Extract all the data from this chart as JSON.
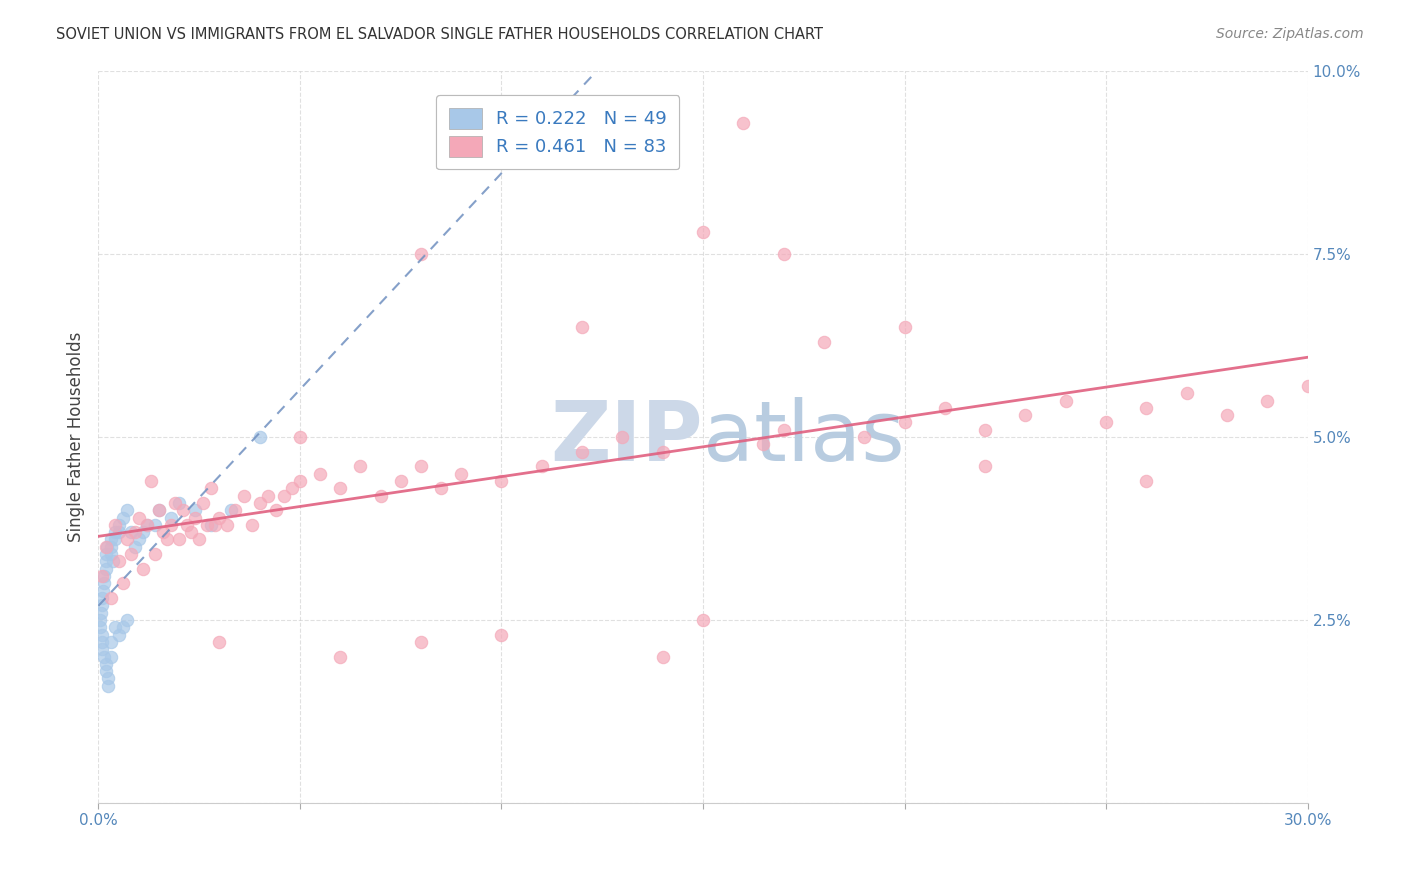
{
  "title": "SOVIET UNION VS IMMIGRANTS FROM EL SALVADOR SINGLE FATHER HOUSEHOLDS CORRELATION CHART",
  "source": "Source: ZipAtlas.com",
  "xlim": [
    0,
    0.3
  ],
  "ylim": [
    0,
    0.1
  ],
  "soviet_R": 0.222,
  "soviet_N": 49,
  "salvador_R": 0.461,
  "salvador_N": 83,
  "soviet_color": "#a8c8e8",
  "salvador_color": "#f4a8b8",
  "soviet_line_color": "#7090c0",
  "salvador_line_color": "#e06080",
  "text_blue": "#3a7abf",
  "text_red": "#cc3366",
  "watermark_color": "#ccd8e8",
  "background_color": "#ffffff",
  "grid_color": "#cccccc",
  "tick_color": "#5588bb",
  "ylabel_color": "#444444",
  "title_color": "#333333",
  "source_color": "#888888",
  "legend_border": "#bbbbbb",
  "soviet_x": [
    0.0003,
    0.0005,
    0.0006,
    0.0008,
    0.001,
    0.001,
    0.001,
    0.001,
    0.0012,
    0.0013,
    0.0015,
    0.0015,
    0.0018,
    0.002,
    0.002,
    0.002,
    0.002,
    0.0022,
    0.0025,
    0.0025,
    0.003,
    0.003,
    0.003,
    0.003,
    0.003,
    0.0035,
    0.004,
    0.004,
    0.004,
    0.005,
    0.005,
    0.005,
    0.006,
    0.006,
    0.007,
    0.007,
    0.008,
    0.009,
    0.01,
    0.011,
    0.012,
    0.014,
    0.015,
    0.018,
    0.02,
    0.024,
    0.028,
    0.033,
    0.04
  ],
  "soviet_y": [
    0.024,
    0.025,
    0.026,
    0.027,
    0.028,
    0.023,
    0.022,
    0.021,
    0.029,
    0.03,
    0.031,
    0.02,
    0.032,
    0.033,
    0.019,
    0.018,
    0.034,
    0.035,
    0.017,
    0.016,
    0.036,
    0.035,
    0.034,
    0.02,
    0.022,
    0.033,
    0.037,
    0.036,
    0.024,
    0.038,
    0.037,
    0.023,
    0.039,
    0.024,
    0.04,
    0.025,
    0.037,
    0.035,
    0.036,
    0.037,
    0.038,
    0.038,
    0.04,
    0.039,
    0.041,
    0.04,
    0.038,
    0.04,
    0.05
  ],
  "salvador_x": [
    0.001,
    0.002,
    0.003,
    0.004,
    0.005,
    0.006,
    0.007,
    0.008,
    0.009,
    0.01,
    0.011,
    0.012,
    0.013,
    0.014,
    0.015,
    0.016,
    0.017,
    0.018,
    0.019,
    0.02,
    0.021,
    0.022,
    0.023,
    0.024,
    0.025,
    0.026,
    0.027,
    0.028,
    0.029,
    0.03,
    0.032,
    0.034,
    0.036,
    0.038,
    0.04,
    0.042,
    0.044,
    0.046,
    0.048,
    0.05,
    0.055,
    0.06,
    0.065,
    0.07,
    0.075,
    0.08,
    0.085,
    0.09,
    0.1,
    0.11,
    0.12,
    0.13,
    0.14,
    0.15,
    0.16,
    0.165,
    0.17,
    0.18,
    0.19,
    0.2,
    0.21,
    0.22,
    0.23,
    0.24,
    0.25,
    0.26,
    0.27,
    0.28,
    0.29,
    0.3,
    0.05,
    0.08,
    0.12,
    0.15,
    0.17,
    0.2,
    0.08,
    0.03,
    0.06,
    0.1,
    0.14,
    0.22,
    0.26
  ],
  "salvador_y": [
    0.031,
    0.035,
    0.028,
    0.038,
    0.033,
    0.03,
    0.036,
    0.034,
    0.037,
    0.039,
    0.032,
    0.038,
    0.044,
    0.034,
    0.04,
    0.037,
    0.036,
    0.038,
    0.041,
    0.036,
    0.04,
    0.038,
    0.037,
    0.039,
    0.036,
    0.041,
    0.038,
    0.043,
    0.038,
    0.039,
    0.038,
    0.04,
    0.042,
    0.038,
    0.041,
    0.042,
    0.04,
    0.042,
    0.043,
    0.044,
    0.045,
    0.043,
    0.046,
    0.042,
    0.044,
    0.046,
    0.043,
    0.045,
    0.044,
    0.046,
    0.048,
    0.05,
    0.048,
    0.025,
    0.093,
    0.049,
    0.051,
    0.063,
    0.05,
    0.052,
    0.054,
    0.051,
    0.053,
    0.055,
    0.052,
    0.054,
    0.056,
    0.053,
    0.055,
    0.057,
    0.05,
    0.075,
    0.065,
    0.078,
    0.075,
    0.065,
    0.022,
    0.022,
    0.02,
    0.023,
    0.02,
    0.046,
    0.044
  ]
}
